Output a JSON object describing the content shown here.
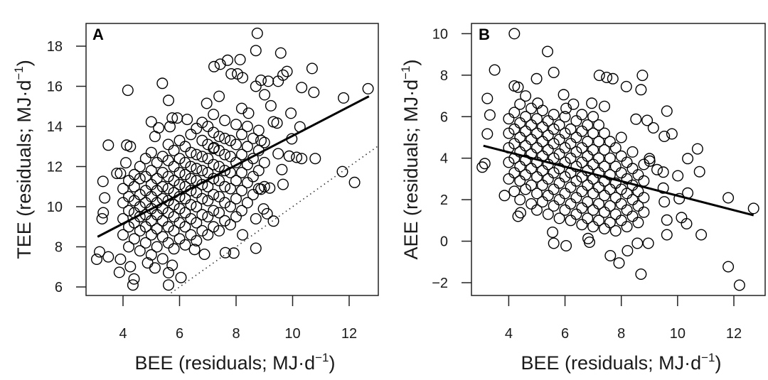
{
  "chart_data": [
    {
      "type": "scatter",
      "panel_label": "A",
      "xlabel": {
        "main": "BEE (residuals; MJ·d",
        "sup": "−1",
        "end": ")"
      },
      "ylabel": {
        "main": "TEE (residuals; MJ·d",
        "sup": "−1",
        "end": ")"
      },
      "xlim": [
        2.95,
        13.3
      ],
      "ylim": [
        5.5,
        19.0
      ],
      "xticks": [
        "4",
        "6",
        "8",
        "10",
        "12"
      ],
      "yticks": [
        "6",
        "8",
        "10",
        "12",
        "14",
        "16",
        "18"
      ],
      "grid": false,
      "marker": "open-circle",
      "color": "#000000",
      "regression_line": {
        "x": [
          3.1,
          12.7
        ],
        "y": [
          8.5,
          15.5
        ],
        "style": "solid"
      },
      "reference_line": {
        "x": [
          5.7,
          13.3
        ],
        "y": [
          5.7,
          13.3
        ],
        "style": "dotted",
        "note": "y = x"
      },
      "clusters": [
        {
          "x": 4.0,
          "y": [
            8.6,
            9.4,
            10.2,
            10.9
          ]
        },
        {
          "x": 4.2,
          "y": [
            8.0,
            9.0,
            9.8,
            10.5,
            11.3
          ]
        },
        {
          "x": 4.4,
          "y": [
            8.4,
            9.2,
            9.7,
            10.3,
            11.0,
            11.6
          ]
        },
        {
          "x": 4.6,
          "y": [
            7.8,
            8.8,
            9.5,
            10.0,
            10.6,
            11.4,
            12.0
          ]
        },
        {
          "x": 4.8,
          "y": [
            8.2,
            9.0,
            9.6,
            10.2,
            10.8,
            11.5,
            12.4
          ]
        },
        {
          "x": 5.0,
          "y": [
            7.6,
            8.6,
            9.3,
            9.9,
            10.5,
            11.1,
            11.8,
            12.7
          ]
        },
        {
          "x": 5.2,
          "y": [
            8.0,
            8.9,
            9.6,
            10.2,
            10.8,
            11.4,
            12.2
          ]
        },
        {
          "x": 5.4,
          "y": [
            7.4,
            8.5,
            9.3,
            9.9,
            10.4,
            11.0,
            11.7,
            12.5
          ]
        },
        {
          "x": 5.6,
          "y": [
            8.2,
            9.0,
            9.7,
            10.3,
            10.9,
            11.5,
            12.3,
            13.1
          ]
        },
        {
          "x": 5.8,
          "y": [
            7.9,
            8.8,
            9.5,
            10.1,
            10.7,
            11.3,
            12.0,
            12.8
          ]
        },
        {
          "x": 6.0,
          "y": [
            8.4,
            9.2,
            9.9,
            10.5,
            11.1,
            11.7,
            12.4,
            13.3
          ]
        },
        {
          "x": 6.2,
          "y": [
            8.1,
            9.0,
            9.7,
            10.4,
            11.0,
            11.6,
            12.2,
            13.0
          ]
        },
        {
          "x": 6.4,
          "y": [
            8.6,
            9.4,
            10.1,
            10.8,
            11.4,
            12.0,
            12.7,
            13.6
          ]
        },
        {
          "x": 6.6,
          "y": [
            8.3,
            9.2,
            10.0,
            10.7,
            11.3,
            11.9,
            12.6,
            13.9
          ]
        },
        {
          "x": 6.8,
          "y": [
            8.8,
            9.6,
            10.4,
            11.1,
            11.8,
            12.5,
            13.3,
            14.2
          ]
        },
        {
          "x": 7.0,
          "y": [
            8.6,
            9.5,
            10.3,
            11.0,
            11.7,
            12.4,
            13.1,
            14.0
          ]
        },
        {
          "x": 7.2,
          "y": [
            9.0,
            9.8,
            10.6,
            11.4,
            12.1,
            12.9,
            13.7,
            14.6
          ]
        },
        {
          "x": 7.4,
          "y": [
            8.8,
            9.7,
            10.5,
            11.3,
            12.0,
            12.8,
            13.5,
            15.5
          ]
        },
        {
          "x": 7.6,
          "y": [
            9.3,
            10.2,
            11.0,
            11.8,
            12.6,
            13.4,
            14.3
          ]
        },
        {
          "x": 7.8,
          "y": [
            9.1,
            10.0,
            10.9,
            11.7,
            12.5,
            13.3
          ]
        },
        {
          "x": 8.0,
          "y": [
            9.5,
            10.4,
            11.3,
            12.2,
            13.1,
            14.1
          ]
        },
        {
          "x": 8.2,
          "y": [
            9.8,
            10.8,
            11.7,
            12.6,
            13.6,
            14.9
          ]
        },
        {
          "x": 8.4,
          "y": [
            10.2,
            11.2,
            12.1,
            13.0,
            14.0
          ]
        },
        {
          "x": 8.6,
          "y": [
            10.6,
            11.5,
            12.4,
            13.4
          ]
        },
        {
          "x": 8.8,
          "y": [
            10.9,
            11.8,
            12.8,
            13.8
          ]
        },
        {
          "x": 9.0,
          "y": [
            11.0,
            12.2,
            13.2
          ]
        }
      ],
      "points": [
        [
          8.75,
          18.64
        ],
        [
          8.7,
          17.78
        ],
        [
          9.58,
          17.66
        ],
        [
          8.14,
          17.33
        ],
        [
          7.7,
          17.3
        ],
        [
          7.44,
          17.1
        ],
        [
          7.22,
          16.98
        ],
        [
          10.69,
          16.89
        ],
        [
          9.8,
          16.74
        ],
        [
          9.66,
          16.56
        ],
        [
          9.49,
          16.25
        ],
        [
          7.83,
          16.62
        ],
        [
          8.05,
          16.62
        ],
        [
          8.23,
          16.43
        ],
        [
          5.39,
          16.15
        ],
        [
          4.17,
          15.8
        ],
        [
          10.32,
          15.94
        ],
        [
          10.75,
          15.7
        ],
        [
          11.8,
          15.42
        ],
        [
          12.67,
          15.88
        ],
        [
          5.61,
          15.3
        ],
        [
          8.88,
          16.3
        ],
        [
          9.14,
          16.25
        ],
        [
          8.7,
          16.0
        ],
        [
          9.01,
          15.58
        ],
        [
          9.23,
          15.03
        ],
        [
          6.96,
          15.15
        ],
        [
          9.94,
          14.66
        ],
        [
          9.45,
          14.17
        ],
        [
          9.32,
          14.23
        ],
        [
          10.26,
          13.98
        ],
        [
          9.97,
          13.38
        ],
        [
          9.49,
          12.64
        ],
        [
          9.88,
          12.52
        ],
        [
          10.14,
          12.46
        ],
        [
          10.32,
          12.4
        ],
        [
          10.8,
          12.4
        ],
        [
          9.62,
          11.85
        ],
        [
          9.66,
          11.11
        ],
        [
          11.76,
          11.75
        ],
        [
          12.19,
          11.21
        ],
        [
          9.19,
          10.93
        ],
        [
          8.97,
          9.89
        ],
        [
          8.7,
          7.93
        ],
        [
          8.23,
          8.6
        ],
        [
          7.92,
          7.69
        ],
        [
          7.62,
          7.71
        ],
        [
          6.88,
          7.63
        ],
        [
          6.53,
          7.87
        ],
        [
          6.05,
          6.47
        ],
        [
          5.61,
          6.1
        ],
        [
          5.61,
          6.71
        ],
        [
          4.39,
          6.4
        ],
        [
          4.35,
          6.1
        ],
        [
          3.87,
          6.73
        ],
        [
          3.07,
          7.38
        ],
        [
          3.17,
          7.75
        ],
        [
          3.29,
          11.26
        ],
        [
          3.35,
          10.44
        ],
        [
          3.48,
          13.07
        ],
        [
          4.13,
          13.07
        ],
        [
          4.26,
          13.0
        ],
        [
          4.1,
          12.19
        ],
        [
          3.78,
          11.66
        ],
        [
          3.91,
          11.66
        ],
        [
          5.0,
          14.23
        ],
        [
          5.74,
          14.42
        ],
        [
          5.92,
          14.42
        ],
        [
          6.27,
          14.35
        ],
        [
          5.26,
          13.93
        ],
        [
          5.66,
          13.99
        ],
        [
          5.13,
          13.5
        ],
        [
          3.3,
          9.7
        ],
        [
          3.26,
          9.4
        ],
        [
          3.48,
          7.5
        ],
        [
          3.91,
          7.38
        ],
        [
          4.26,
          7.01
        ],
        [
          4.87,
          7.2
        ],
        [
          5.13,
          6.95
        ],
        [
          5.74,
          7.08
        ],
        [
          9.32,
          9.28
        ],
        [
          9.1,
          9.65
        ],
        [
          8.7,
          9.4
        ],
        [
          8.88,
          10.87
        ],
        [
          8.44,
          14.66
        ],
        [
          8.88,
          13.3
        ],
        [
          7.22,
          12.95
        ]
      ]
    },
    {
      "type": "scatter",
      "panel_label": "B",
      "xlabel": {
        "main": "BEE (residuals; MJ·d",
        "sup": "−1",
        "end": ")"
      },
      "ylabel": {
        "main": "AEE (residuals; MJ·d",
        "sup": "−1",
        "end": ")"
      },
      "xlim": [
        2.95,
        13.3
      ],
      "ylim": [
        -2.6,
        10.5
      ],
      "xticks": [
        "4",
        "6",
        "8",
        "10",
        "12"
      ],
      "yticks": [
        "−2",
        "0",
        "2",
        "4",
        "6",
        "8",
        "10"
      ],
      "grid": false,
      "marker": "open-circle",
      "color": "#000000",
      "regression_line": {
        "x": [
          3.1,
          12.7
        ],
        "y": [
          4.6,
          1.25
        ],
        "style": "solid"
      },
      "clusters": [
        {
          "x": 4.0,
          "y": [
            3.0,
            3.8,
            4.5,
            5.2,
            5.9
          ]
        },
        {
          "x": 4.2,
          "y": [
            2.4,
            3.3,
            4.0,
            4.7,
            5.4,
            6.2
          ]
        },
        {
          "x": 4.4,
          "y": [
            2.0,
            2.9,
            3.6,
            4.3,
            5.0,
            5.7,
            6.6
          ]
        },
        {
          "x": 4.6,
          "y": [
            2.5,
            3.2,
            3.9,
            4.6,
            5.3,
            6.0,
            7.0
          ]
        },
        {
          "x": 4.8,
          "y": [
            1.8,
            2.7,
            3.5,
            4.2,
            4.9,
            5.6,
            6.4
          ]
        },
        {
          "x": 5.0,
          "y": [
            1.5,
            2.3,
            3.1,
            3.8,
            4.5,
            5.2,
            5.9
          ]
        },
        {
          "x": 5.2,
          "y": [
            1.9,
            2.7,
            3.4,
            4.1,
            4.8,
            5.5,
            6.3
          ]
        },
        {
          "x": 5.4,
          "y": [
            1.3,
            2.2,
            3.0,
            3.7,
            4.4,
            5.1,
            5.8
          ]
        },
        {
          "x": 5.6,
          "y": [
            1.7,
            2.5,
            3.3,
            4.0,
            4.7,
            5.4,
            6.1
          ]
        },
        {
          "x": 5.8,
          "y": [
            1.1,
            2.0,
            2.8,
            3.5,
            4.2,
            4.9,
            5.6
          ]
        },
        {
          "x": 6.0,
          "y": [
            1.5,
            2.3,
            3.1,
            3.8,
            4.5,
            5.2,
            6.0
          ]
        },
        {
          "x": 6.2,
          "y": [
            1.0,
            1.8,
            2.6,
            3.3,
            4.0,
            4.7,
            5.4
          ]
        },
        {
          "x": 6.4,
          "y": [
            1.3,
            2.1,
            2.9,
            3.6,
            4.3,
            5.0,
            5.8
          ]
        },
        {
          "x": 6.6,
          "y": [
            0.8,
            1.6,
            2.4,
            3.1,
            3.8,
            4.5,
            5.3,
            6.1
          ]
        },
        {
          "x": 6.8,
          "y": [
            1.1,
            1.9,
            2.7,
            3.4,
            4.1,
            4.8,
            5.6
          ]
        },
        {
          "x": 7.0,
          "y": [
            0.7,
            1.5,
            2.3,
            3.0,
            3.7,
            4.4,
            5.2,
            6.0
          ]
        },
        {
          "x": 7.2,
          "y": [
            1.0,
            1.8,
            2.6,
            3.3,
            4.0,
            4.8,
            5.6
          ]
        },
        {
          "x": 7.4,
          "y": [
            0.6,
            1.4,
            2.2,
            2.9,
            3.6,
            4.4,
            5.2,
            6.5
          ]
        },
        {
          "x": 7.6,
          "y": [
            0.9,
            1.7,
            2.5,
            3.2,
            4.0,
            4.8
          ]
        },
        {
          "x": 7.8,
          "y": [
            0.5,
            1.3,
            2.1,
            2.8,
            3.6,
            4.5
          ]
        },
        {
          "x": 8.0,
          "y": [
            1.0,
            1.8,
            2.5,
            3.3,
            4.1,
            5.0
          ]
        },
        {
          "x": 8.2,
          "y": [
            0.7,
            1.5,
            2.3,
            3.0,
            3.8
          ]
        },
        {
          "x": 8.4,
          "y": [
            1.2,
            2.0,
            2.7,
            3.5,
            4.3
          ]
        },
        {
          "x": 8.6,
          "y": [
            0.9,
            1.7,
            2.4,
            3.2
          ]
        },
        {
          "x": 8.8,
          "y": [
            1.4,
            2.1,
            2.9,
            3.7
          ]
        }
      ],
      "points": [
        [
          4.2,
          10.0
        ],
        [
          5.38,
          9.14
        ],
        [
          3.5,
          8.25
        ],
        [
          5.6,
          8.13
        ],
        [
          4.99,
          7.83
        ],
        [
          7.22,
          7.99
        ],
        [
          7.48,
          7.89
        ],
        [
          7.7,
          7.83
        ],
        [
          8.75,
          7.99
        ],
        [
          8.7,
          7.3
        ],
        [
          8.18,
          7.45
        ],
        [
          4.2,
          7.48
        ],
        [
          4.33,
          7.42
        ],
        [
          3.24,
          6.88
        ],
        [
          3.33,
          6.08
        ],
        [
          3.24,
          5.17
        ],
        [
          3.06,
          3.57
        ],
        [
          3.15,
          3.74
        ],
        [
          3.85,
          2.2
        ],
        [
          4.33,
          1.2
        ],
        [
          4.42,
          1.37
        ],
        [
          5.56,
          0.43
        ],
        [
          5.6,
          -0.1
        ],
        [
          6.04,
          -0.22
        ],
        [
          6.82,
          0.13
        ],
        [
          6.87,
          -0.05
        ],
        [
          7.61,
          -0.7
        ],
        [
          7.92,
          -1.05
        ],
        [
          8.22,
          -0.46
        ],
        [
          8.7,
          -1.59
        ],
        [
          8.57,
          -0.1
        ],
        [
          8.96,
          -0.1
        ],
        [
          11.8,
          -1.23
        ],
        [
          12.2,
          -2.12
        ],
        [
          10.84,
          0.31
        ],
        [
          9.62,
          0.31
        ],
        [
          10.32,
          0.84
        ],
        [
          10.14,
          1.14
        ],
        [
          11.8,
          2.09
        ],
        [
          12.7,
          1.58
        ],
        [
          10.71,
          4.45
        ],
        [
          10.78,
          3.35
        ],
        [
          10.36,
          3.98
        ],
        [
          10.01,
          3.15
        ],
        [
          10.36,
          2.32
        ],
        [
          10.06,
          2.05
        ],
        [
          9.62,
          6.27
        ],
        [
          9.53,
          5.05
        ],
        [
          9.8,
          5.17
        ],
        [
          9.0,
          3.98
        ],
        [
          9.01,
          3.86
        ],
        [
          9.27,
          3.45
        ],
        [
          9.49,
          3.33
        ],
        [
          9.49,
          2.56
        ],
        [
          9.53,
          1.9
        ],
        [
          9.62,
          1.02
        ],
        [
          8.92,
          5.82
        ],
        [
          9.14,
          5.46
        ],
        [
          8.52,
          5.88
        ],
        [
          6.95,
          6.65
        ],
        [
          6.3,
          6.6
        ],
        [
          6.04,
          6.4
        ],
        [
          5.95,
          7.06
        ],
        [
          5.03,
          6.65
        ]
      ]
    }
  ]
}
